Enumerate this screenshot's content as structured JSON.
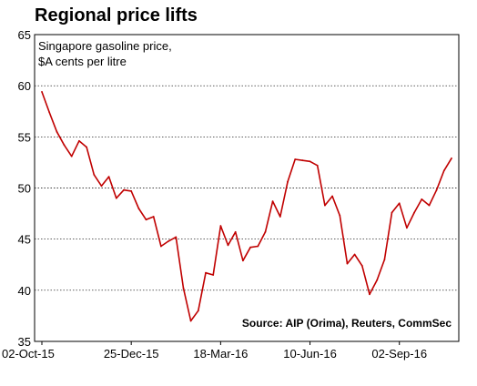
{
  "chart_data": {
    "type": "line",
    "title": "Regional price lifts",
    "subtitle_lines": [
      "Singapore gasoline price,",
      "$A cents per litre"
    ],
    "source": "Source: AIP (Orima), Reuters, CommSec",
    "ylim": [
      35,
      65
    ],
    "yticks": [
      35,
      40,
      45,
      50,
      55,
      60,
      65
    ],
    "x_tick_labels": [
      "02-Oct-15",
      "25-Dec-15",
      "18-Mar-16",
      "10-Jun-16",
      "02-Sep-16"
    ],
    "x_tick_index": [
      0,
      12,
      24,
      36,
      48
    ],
    "grid": true,
    "line_color": "#c00000",
    "series": [
      {
        "values": [
          59.4,
          57.4,
          55.5,
          54.2,
          53.1,
          54.6,
          54.0,
          51.3,
          50.2,
          51.1,
          49.0,
          49.8,
          49.7,
          48.0,
          46.9,
          47.2,
          44.3,
          44.8,
          45.2,
          40.2,
          37.0,
          38.0,
          41.7,
          41.5,
          46.3,
          44.4,
          45.7,
          42.9,
          44.2,
          44.3,
          45.7,
          48.7,
          47.2,
          50.6,
          52.8,
          52.7,
          52.6,
          52.2,
          48.3,
          49.2,
          47.3,
          42.6,
          43.5,
          42.4,
          39.6,
          41.0,
          43.0,
          47.6,
          48.5,
          46.1,
          47.6,
          48.9,
          48.3,
          49.8,
          51.7,
          52.9
        ]
      }
    ]
  }
}
